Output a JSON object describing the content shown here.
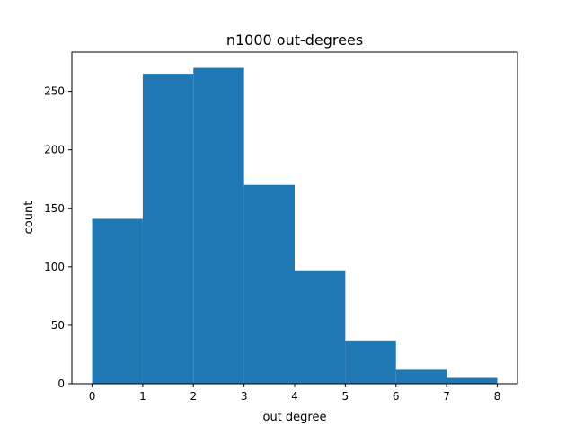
{
  "chart_data": {
    "type": "bar",
    "title": "n1000 out-degrees",
    "xlabel": "out degree",
    "ylabel": "count",
    "bin_edges": [
      0,
      1,
      2,
      3,
      4,
      5,
      6,
      7,
      8
    ],
    "values": [
      141,
      265,
      270,
      170,
      97,
      37,
      12,
      5
    ],
    "xlim": [
      -0.4,
      8.4
    ],
    "ylim": [
      0,
      283.5
    ],
    "xticks": [
      0,
      1,
      2,
      3,
      4,
      5,
      6,
      7,
      8
    ],
    "yticks": [
      0,
      50,
      100,
      150,
      200,
      250
    ],
    "grid": false,
    "colors": {
      "bar": "#1f77b4",
      "axes": "#000000",
      "background": "#ffffff"
    }
  }
}
